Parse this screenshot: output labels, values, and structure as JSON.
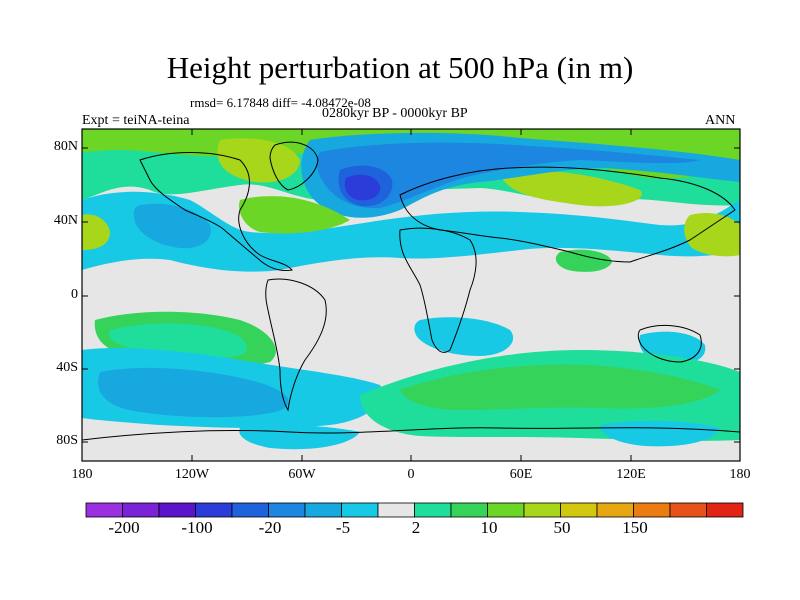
{
  "title": "Height perturbation at 500 hPa (in m)",
  "stats_line": "rmsd= 6.17848 diff= -4.08472e-08",
  "period": "0280kyr BP - 0000kyr BP",
  "experiment": "Expt = teiNA-teina",
  "season": "ANN",
  "lat_ticks": [
    "80N",
    "40N",
    "0",
    "40S",
    "80S"
  ],
  "lon_ticks": [
    "180",
    "120W",
    "60W",
    "0",
    "60E",
    "120E",
    "180"
  ],
  "colorbar": {
    "colors": [
      "#9b30e0",
      "#7a22d6",
      "#5a14cc",
      "#2b3cd8",
      "#1f63dc",
      "#1c86e0",
      "#17a8e0",
      "#18c9e6",
      "#e6e6e6",
      "#1fdd9a",
      "#36d35a",
      "#6bd626",
      "#a8d61a",
      "#d2c810",
      "#e6a710",
      "#ea7c12",
      "#e8521a",
      "#e22414"
    ],
    "labels": [
      "-200",
      "-100",
      "-20",
      "-5",
      "2",
      "10",
      "50",
      "150"
    ]
  },
  "map_colors": {
    "neutral": "#e6e6e6",
    "light_cyan": "#18c9e6",
    "sky": "#17a8e0",
    "mid_blue": "#1c86e0",
    "deep_blue": "#1f63dc",
    "dark_blue": "#2b3cd8",
    "teal_green": "#1fdd9a",
    "green": "#36d35a",
    "lime": "#6bd626",
    "yellow_green": "#a8d61a",
    "yellow": "#d2c810"
  }
}
